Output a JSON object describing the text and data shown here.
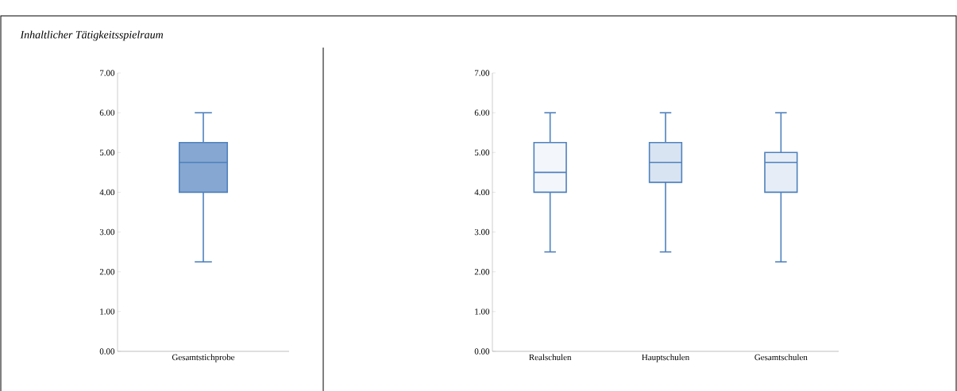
{
  "chart_data": [
    {
      "type": "box",
      "title": "Inhaltlicher Tätigkeitsspielraum",
      "categories": [
        "Gesamtstichprobe"
      ],
      "color": "#4f81bd",
      "colors": [
        "#86a7d2"
      ],
      "boxes": [
        {
          "low": 2.25,
          "q1": 4.0,
          "median": 4.75,
          "q3": 5.25,
          "high": 6.0
        }
      ],
      "ylim": [
        0,
        7
      ],
      "yticks": [
        {
          "value": 0,
          "label": "0.00"
        },
        {
          "value": 1,
          "label": "1.00"
        },
        {
          "value": 2,
          "label": "2.00"
        },
        {
          "value": 3,
          "label": "3.00"
        },
        {
          "value": 4,
          "label": "4.00"
        },
        {
          "value": 5,
          "label": "5.00"
        },
        {
          "value": 6,
          "label": "6.00"
        },
        {
          "value": 7,
          "label": "7.00"
        }
      ]
    },
    {
      "type": "box",
      "categories": [
        "Realschulen",
        "Hauptschulen",
        "Gesamtschulen"
      ],
      "color": "#4f81bd",
      "colors": [
        "#f3f6fb",
        "#d9e4f2",
        "#e6edf7"
      ],
      "boxes": [
        {
          "low": 2.5,
          "q1": 4.0,
          "median": 4.5,
          "q3": 5.25,
          "high": 6.0
        },
        {
          "low": 2.5,
          "q1": 4.25,
          "median": 4.75,
          "q3": 5.25,
          "high": 6.0
        },
        {
          "low": 2.25,
          "q1": 4.0,
          "median": 4.75,
          "q3": 5.0,
          "high": 6.0
        }
      ],
      "ylim": [
        0,
        7
      ],
      "yticks": [
        {
          "value": 0,
          "label": "0.00"
        },
        {
          "value": 1,
          "label": "1.00"
        },
        {
          "value": 2,
          "label": "2.00"
        },
        {
          "value": 3,
          "label": "3.00"
        },
        {
          "value": 4,
          "label": "4.00"
        },
        {
          "value": 5,
          "label": "5.00"
        },
        {
          "value": 6,
          "label": "6.00"
        },
        {
          "value": 7,
          "label": "7.00"
        }
      ]
    }
  ]
}
